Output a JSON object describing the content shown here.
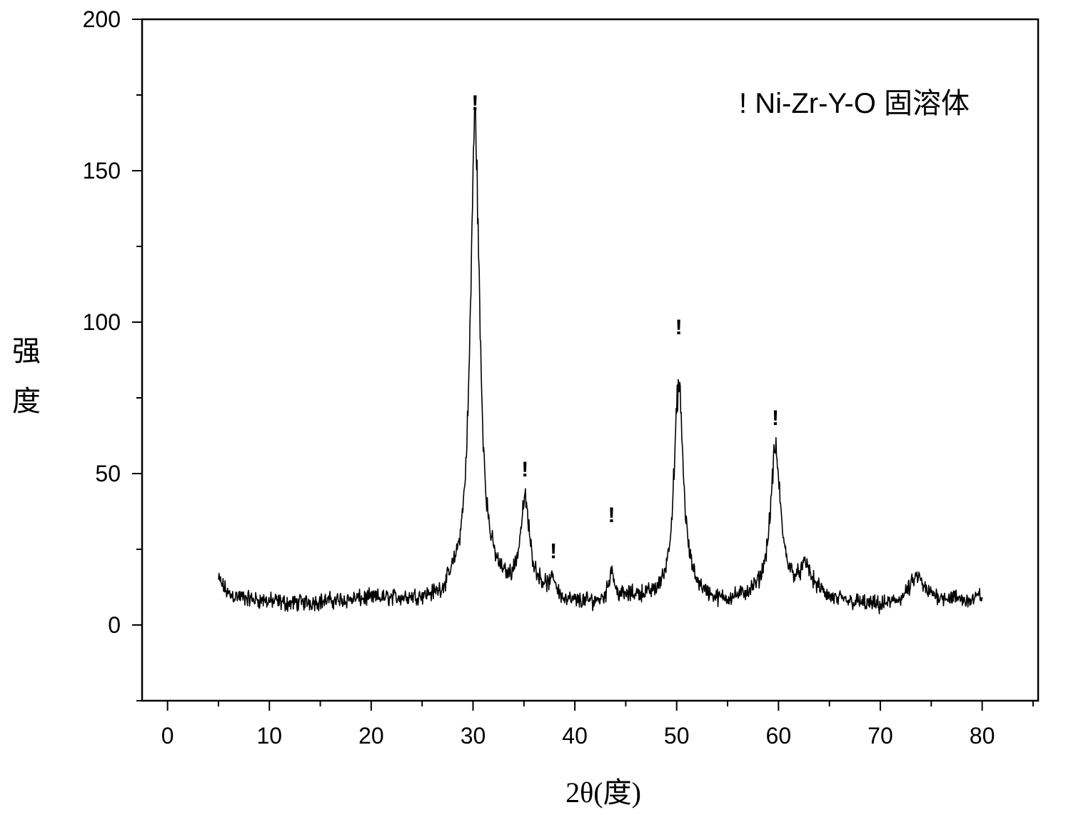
{
  "chart_data": {
    "type": "line",
    "xlabel": "2θ(度)",
    "ylabel": "强度",
    "xlim": [
      -2.5,
      85.5
    ],
    "ylim": [
      -25,
      200
    ],
    "x_ticks": [
      0,
      10,
      20,
      30,
      40,
      50,
      60,
      70,
      80
    ],
    "x_minor_step": 5,
    "y_ticks": [
      0,
      50,
      100,
      150,
      200
    ],
    "y_minor_step": 25,
    "x_range": [
      5,
      80
    ],
    "x_step": 0.05,
    "baseline": [
      [
        5,
        15
      ],
      [
        6,
        10
      ],
      [
        8,
        8.5
      ],
      [
        12,
        7
      ],
      [
        20,
        8.5
      ],
      [
        27,
        8
      ],
      [
        28,
        11
      ],
      [
        32,
        12
      ],
      [
        33.5,
        10
      ],
      [
        36.5,
        11
      ],
      [
        38,
        10
      ],
      [
        39,
        7
      ],
      [
        42,
        7
      ],
      [
        46,
        9
      ],
      [
        48,
        8
      ],
      [
        52,
        9
      ],
      [
        54,
        7
      ],
      [
        56,
        8
      ],
      [
        58,
        9
      ],
      [
        61,
        11
      ],
      [
        64,
        10
      ],
      [
        65,
        8
      ],
      [
        68,
        7
      ],
      [
        70,
        6
      ],
      [
        72,
        8
      ],
      [
        73,
        10
      ],
      [
        76,
        9
      ],
      [
        79,
        8
      ],
      [
        80,
        10
      ]
    ],
    "peaks": [
      {
        "x": 30.2,
        "height": 155,
        "width": 0.55
      },
      {
        "x": 35.1,
        "height": 29,
        "width": 0.55
      },
      {
        "x": 37.9,
        "height": 4,
        "width": 0.25
      },
      {
        "x": 43.6,
        "height": 10,
        "width": 0.3
      },
      {
        "x": 50.2,
        "height": 70,
        "width": 0.55
      },
      {
        "x": 59.7,
        "height": 47,
        "width": 0.6
      },
      {
        "x": 62.7,
        "height": 8,
        "width": 0.6
      },
      {
        "x": 73.6,
        "height": 6,
        "width": 0.6
      }
    ],
    "noise_amplitude": 3.5,
    "markers": [
      {
        "x": 30.2,
        "y": 170
      },
      {
        "x": 35.1,
        "y": 49
      },
      {
        "x": 37.9,
        "y": 22
      },
      {
        "x": 43.6,
        "y": 34
      },
      {
        "x": 50.2,
        "y": 96
      },
      {
        "x": 59.7,
        "y": 66
      }
    ],
    "marker_symbol": "!",
    "legend_text": "! Ni-Zr-Y-O 固溶体",
    "line_color": "#000000"
  }
}
